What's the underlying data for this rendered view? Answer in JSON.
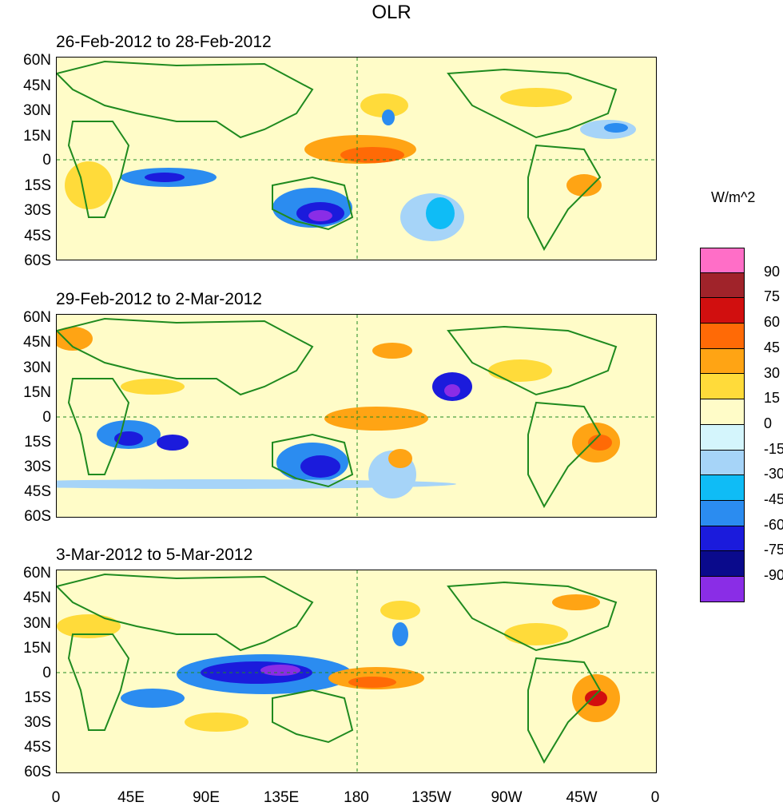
{
  "title": "OLR",
  "unit_label": "W/m^2",
  "panels": [
    {
      "label": "26-Feb-2012 to 28-Feb-2012"
    },
    {
      "label": "29-Feb-2012 to 2-Mar-2012"
    },
    {
      "label": "3-Mar-2012 to 5-Mar-2012"
    }
  ],
  "lat_labels": [
    "60N",
    "45N",
    "30N",
    "15N",
    "0",
    "15S",
    "30S",
    "45S",
    "60S"
  ],
  "lon_labels": [
    "0",
    "45E",
    "90E",
    "135E",
    "180",
    "135W",
    "90W",
    "45W",
    "0"
  ],
  "colorbar": {
    "labels": [
      "90",
      "75",
      "60",
      "45",
      "30",
      "15",
      "0",
      "-15",
      "-30",
      "-45",
      "-60",
      "-75",
      "-90"
    ],
    "colors": [
      "#ff6ec7",
      "#a0232a",
      "#d10f0f",
      "#ff6a06",
      "#ffa414",
      "#ffdb3a",
      "#fffcc8",
      "#d4f5fc",
      "#a6d4f8",
      "#0fbcf6",
      "#2b8cf0",
      "#1b1bdc",
      "#0a0a8c",
      "#8a2de6"
    ]
  },
  "colors": {
    "background_fill": "#fffcc8",
    "land_outline": "#1f8a1f",
    "grid_dash": "#1f8a1f"
  }
}
